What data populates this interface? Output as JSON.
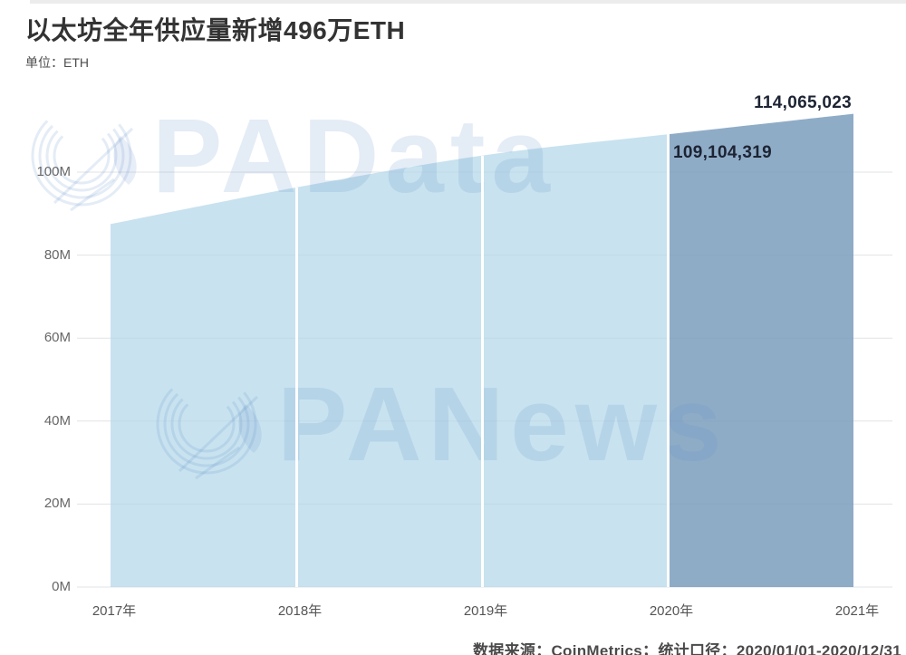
{
  "header": {
    "title": "以太坊全年供应量新增496万ETH",
    "unit_label": "单位：ETH"
  },
  "chart_data": {
    "type": "area",
    "title": "以太坊全年供应量新增496万ETH",
    "unit": "ETH",
    "x": [
      "2017年",
      "2018年",
      "2019年",
      "2020年",
      "2021年"
    ],
    "series": [
      {
        "values": [
          87500000,
          96300000,
          104000000,
          109104319,
          114065023
        ]
      }
    ],
    "point_labels": [
      {
        "x": "2020年",
        "value": 109104319,
        "text": "109,104,319"
      },
      {
        "x": "2021年",
        "value": 114065023,
        "text": "114,065,023"
      }
    ],
    "y_ticks": [
      "0M",
      "20M",
      "40M",
      "60M",
      "80M",
      "100M"
    ],
    "ylim": [
      0,
      115000000
    ],
    "grid": true,
    "legend": false,
    "highlight_range": {
      "from": "2020年",
      "to": "2021年"
    },
    "colors": {
      "area_light": "#c8e2ef",
      "area_dark": "#8facc7",
      "grid": "#ebebeb",
      "point_label_text": "#1d2433"
    }
  },
  "watermarks": [
    {
      "text": "PAData"
    },
    {
      "text": "PANews"
    }
  ],
  "footer": {
    "text": "数据来源：CoinMetrics；统计口径：2020/01/01-2020/12/31"
  }
}
